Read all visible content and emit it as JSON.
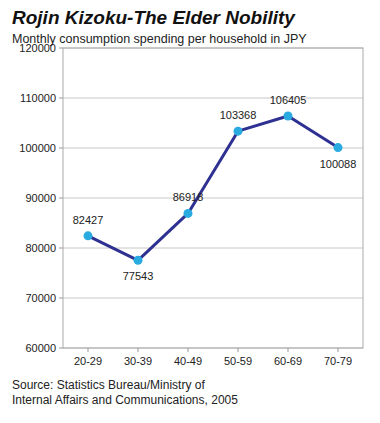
{
  "chart_data": {
    "type": "line",
    "title": "Rojin Kizoku-The Elder Nobility",
    "subtitle": "Monthly consumption spending per household in JPY",
    "categories": [
      "20-29",
      "30-39",
      "40-49",
      "50-59",
      "60-69",
      "70-79"
    ],
    "values": [
      82427,
      77543,
      86918,
      103368,
      106405,
      100088
    ],
    "color": "#2e3192",
    "marker": "circle",
    "ylim": [
      60000,
      120000
    ],
    "yticks": [
      60000,
      70000,
      80000,
      90000,
      100000,
      110000,
      120000
    ],
    "grid": true,
    "data_labels": true,
    "source": [
      "Source: Statistics Bureau/Ministry of",
      "Internal Affairs and Communications, 2005"
    ]
  }
}
